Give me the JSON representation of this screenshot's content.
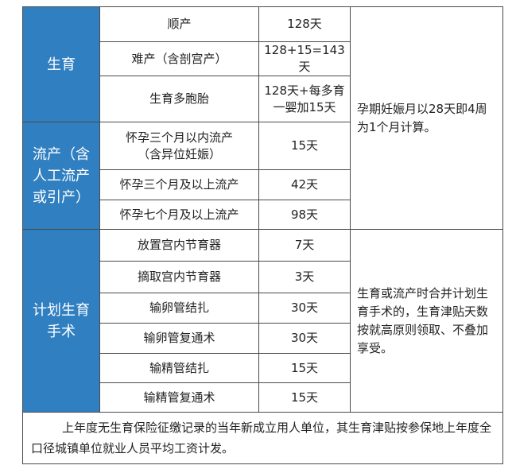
{
  "table": {
    "groups": [
      {
        "name": "生育",
        "rows": [
          {
            "item": [
              "顺产"
            ],
            "days": [
              "128天"
            ]
          },
          {
            "item": [
              "难产（含剖宫产）"
            ],
            "days": [
              "128+15=143天"
            ]
          },
          {
            "item": [
              "生育多胞胎"
            ],
            "days": [
              "128天+每多育",
              "一婴加15天"
            ]
          }
        ]
      },
      {
        "name": "流产（含人工流产或引产）",
        "rows": [
          {
            "item": [
              "怀孕三个月以内流产",
              "（含异位妊娠）"
            ],
            "days": [
              "15天"
            ]
          },
          {
            "item": [
              "怀孕三个月及以上流产"
            ],
            "days": [
              "42天"
            ]
          },
          {
            "item": [
              "怀孕七个月及以上流产"
            ],
            "days": [
              "98天"
            ]
          }
        ]
      },
      {
        "name": "计划生育手术",
        "rows": [
          {
            "item": [
              "放置宫内节育器"
            ],
            "days": [
              "7天"
            ]
          },
          {
            "item": [
              "摘取宫内节育器"
            ],
            "days": [
              "3天"
            ]
          },
          {
            "item": [
              "输卵管结扎"
            ],
            "days": [
              "30天"
            ]
          },
          {
            "item": [
              "输卵管复通术"
            ],
            "days": [
              "30天"
            ]
          },
          {
            "item": [
              "输精管结扎"
            ],
            "days": [
              "15天"
            ]
          },
          {
            "item": [
              "输精管复通术"
            ],
            "days": [
              "15天"
            ]
          }
        ]
      }
    ],
    "notes": [
      "孕期妊娠月以28天即4周为1个月计算。",
      "生育或流产时合并计划生育手术的，生育津贴天数按就高原则领取、不叠加享受。"
    ],
    "footer": "上年度无生育保险征缴记录的当年新成立用人单位，其生育津贴按参保地上年度全口径城镇单位就业人员平均工资计发。"
  }
}
